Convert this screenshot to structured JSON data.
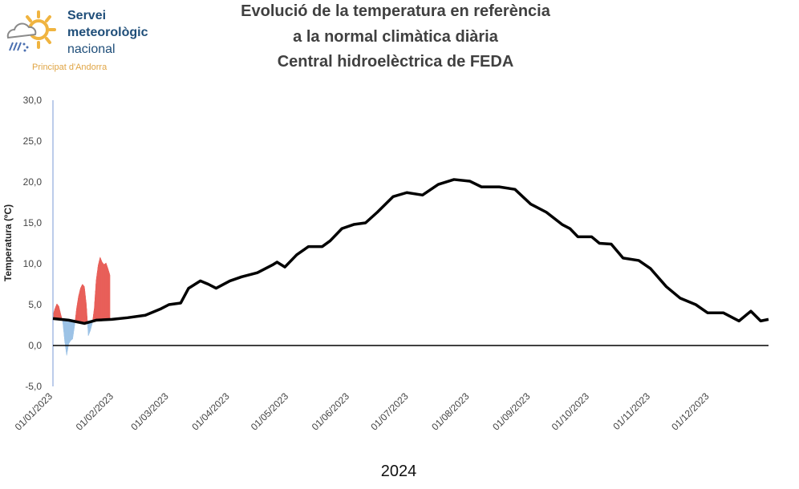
{
  "logo": {
    "line1": "Servei",
    "line2": "meteorològic",
    "line3": "nacional",
    "sub": "Principat d'Andorra"
  },
  "title": [
    "Evolució de la temperatura en referència",
    "a la normal climàtica diària",
    "Central hidroelèctrica de FEDA"
  ],
  "colors": {
    "above": "#e8605a",
    "below": "#9dc3e6",
    "normal": "#000000",
    "axis": "#8faadc"
  },
  "chart_data": {
    "type": "line",
    "title": "Evolució de la temperatura en referència a la normal climàtica diària Central hidroelèctrica de FEDA",
    "xlabel": "2024",
    "ylabel": "Temperatura (ºC)",
    "ylim": [
      -5,
      30
    ],
    "yticks": [
      "30,0",
      "25,0",
      "20,0",
      "15,0",
      "10,0",
      "5,0",
      "0,0",
      "-5,0"
    ],
    "ytick_values": [
      30,
      25,
      20,
      15,
      10,
      5,
      0,
      -5
    ],
    "xticks": [
      "01/01/2023",
      "01/02/2023",
      "01/03/2023",
      "01/04/2023",
      "01/05/2023",
      "01/06/2023",
      "01/07/2023",
      "01/08/2023",
      "01/09/2023",
      "01/10/2023",
      "01/11/2023",
      "01/12/2023"
    ],
    "xtick_dates": [
      "2023-01-01",
      "2023-02-01",
      "2023-03-01",
      "2023-04-01",
      "2023-05-01",
      "2023-06-01",
      "2023-07-01",
      "2023-08-01",
      "2023-09-01",
      "2023-10-01",
      "2023-11-01",
      "2023-12-01"
    ],
    "xlim": [
      "2023-01-01",
      "2023-12-31"
    ],
    "grid": false,
    "series": [
      {
        "role": "normal",
        "x": [
          "2023-01-01",
          "2023-01-09",
          "2023-01-17",
          "2023-01-23",
          "2023-01-31",
          "2023-02-08",
          "2023-02-17",
          "2023-02-25",
          "2023-03-01",
          "2023-03-07",
          "2023-03-11",
          "2023-03-17",
          "2023-03-21",
          "2023-03-25",
          "2023-04-01",
          "2023-04-07",
          "2023-04-15",
          "2023-04-23",
          "2023-04-25",
          "2023-04-29",
          "2023-05-05",
          "2023-05-11",
          "2023-05-18",
          "2023-05-22",
          "2023-05-28",
          "2023-06-03",
          "2023-06-09",
          "2023-06-15",
          "2023-06-23",
          "2023-06-30",
          "2023-07-08",
          "2023-07-16",
          "2023-07-24",
          "2023-08-01",
          "2023-08-07",
          "2023-08-16",
          "2023-08-24",
          "2023-09-01",
          "2023-09-09",
          "2023-09-17",
          "2023-09-21",
          "2023-09-25",
          "2023-10-02",
          "2023-10-06",
          "2023-10-12",
          "2023-10-18",
          "2023-10-26",
          "2023-11-01",
          "2023-11-09",
          "2023-11-16",
          "2023-11-24",
          "2023-11-30",
          "2023-12-08",
          "2023-12-16",
          "2023-12-22",
          "2023-12-27",
          "2023-12-31"
        ],
        "y": [
          3.3,
          3.1,
          2.7,
          3.1,
          3.2,
          3.4,
          3.7,
          4.5,
          5.0,
          5.2,
          7.0,
          7.9,
          7.5,
          7.0,
          7.9,
          8.4,
          8.9,
          9.9,
          10.2,
          9.6,
          11.1,
          12.1,
          12.1,
          12.8,
          14.3,
          14.8,
          15.0,
          16.3,
          18.2,
          18.7,
          18.4,
          19.7,
          20.3,
          20.1,
          19.4,
          19.4,
          19.1,
          17.3,
          16.3,
          14.8,
          14.3,
          13.3,
          13.3,
          12.5,
          12.4,
          10.7,
          10.4,
          9.4,
          7.2,
          5.8,
          5.0,
          4.0,
          4.0,
          3.0,
          4.2,
          3.0,
          3.2
        ]
      },
      {
        "role": "observed",
        "x": [
          "2023-01-01",
          "2023-01-02",
          "2023-01-03",
          "2023-01-04",
          "2023-01-05",
          "2023-01-06",
          "2023-01-07",
          "2023-01-08",
          "2023-01-09",
          "2023-01-10",
          "2023-01-11",
          "2023-01-12",
          "2023-01-13",
          "2023-01-14",
          "2023-01-15",
          "2023-01-16",
          "2023-01-17",
          "2023-01-18",
          "2023-01-19",
          "2023-01-20",
          "2023-01-21",
          "2023-01-22",
          "2023-01-23",
          "2023-01-24",
          "2023-01-25",
          "2023-01-26",
          "2023-01-27",
          "2023-01-28",
          "2023-01-29",
          "2023-01-30"
        ],
        "y": [
          3.7,
          4.5,
          5.1,
          4.8,
          3.8,
          2.9,
          0.5,
          -1.2,
          0.2,
          0.6,
          0.8,
          2.4,
          4.5,
          6.0,
          7.0,
          7.5,
          7.2,
          5.0,
          1.2,
          1.8,
          2.7,
          4.5,
          8.0,
          9.8,
          10.8,
          10.2,
          9.9,
          10.1,
          9.4,
          8.6
        ]
      }
    ]
  }
}
